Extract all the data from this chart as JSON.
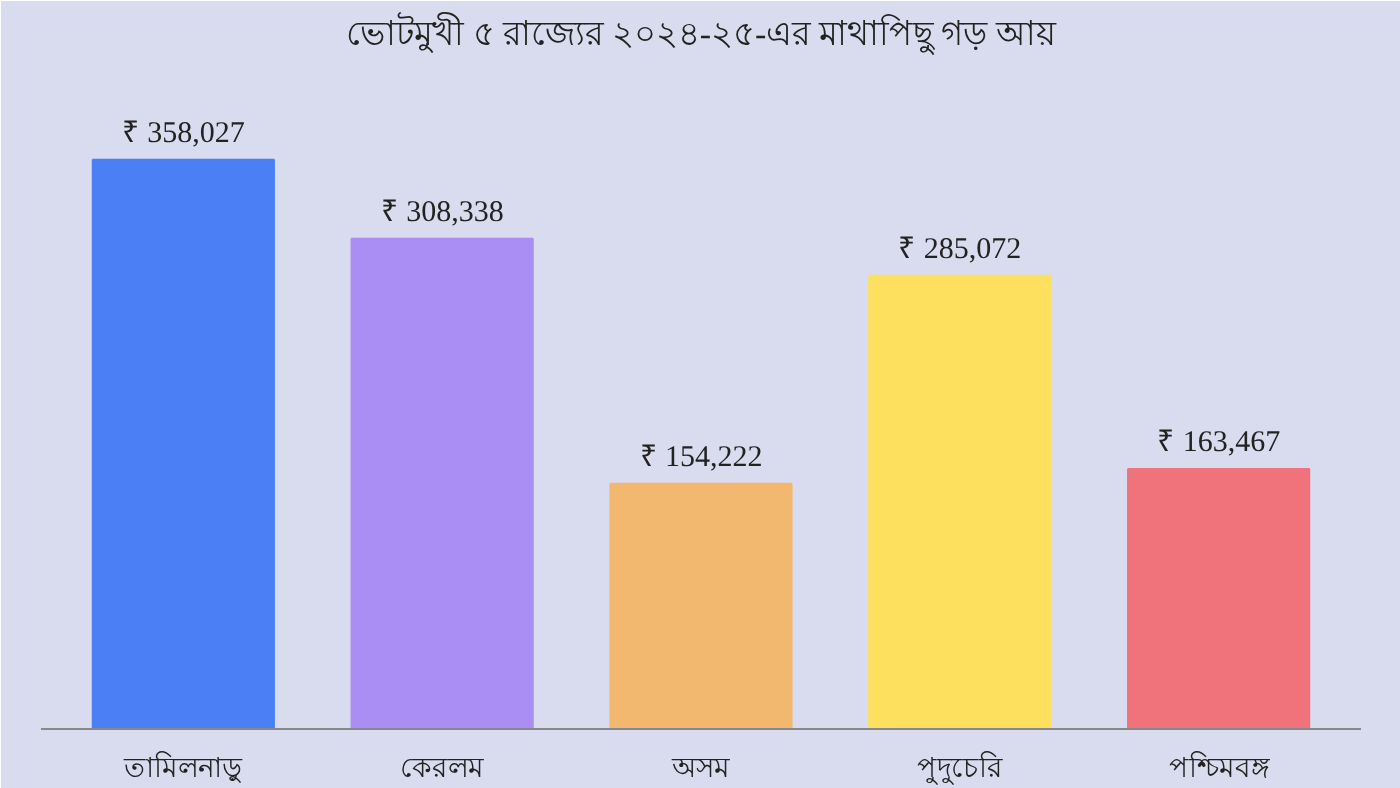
{
  "chart_data": {
    "type": "bar",
    "title": "ভোটমুখী ৫ রাজ্যের ২০২৪-২৫-এর মাথাপিছু গড় আয়",
    "categories": [
      "তামিলনাড়ু",
      "কেরলম",
      "অসম",
      "পুদুচেরি",
      "পশ্চিমবঙ্গ"
    ],
    "values": [
      358027,
      308338,
      154222,
      285072,
      163467
    ],
    "colors": [
      "#4a7ff5",
      "#ab8ef3",
      "#f2b870",
      "#fde15e",
      "#f0727a"
    ],
    "value_labels": [
      "₹ 358,027",
      "₹ 308,338",
      "₹ 154,222",
      "₹ 285,072",
      "₹ 163,467"
    ]
  }
}
